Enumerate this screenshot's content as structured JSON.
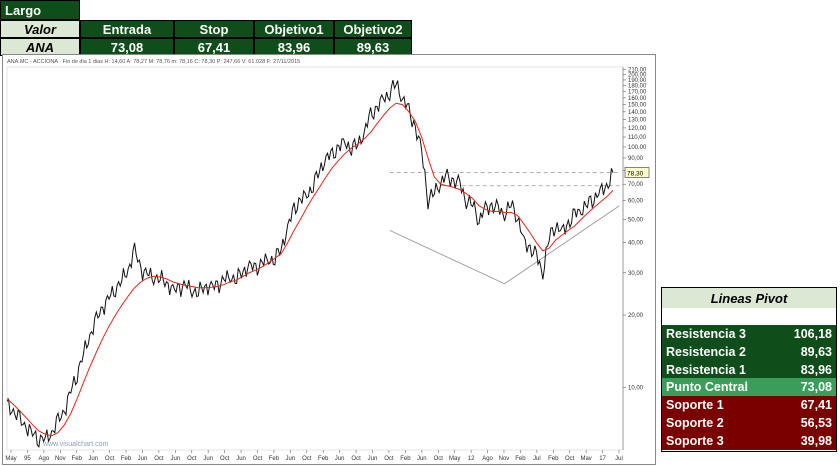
{
  "trade_table": {
    "title": "Largo",
    "row_label_header": "Valor",
    "row_label": "ANA",
    "columns": [
      "Entrada",
      "Stop",
      "Objetivo1",
      "Objetivo2"
    ],
    "values": [
      "73,08",
      "67,41",
      "83,96",
      "89,63"
    ]
  },
  "chart_header": "ANA.MC - ACCIONA  · Fin de dia 1 dias H: 14,60  A: 78,27  M: 78,76  m: 78,16  C: 78,30  P: 247,66  V: 61.028  F: 27/11/2015",
  "watermark": "www.visualchart.com",
  "chart_data": {
    "type": "line",
    "scale": "log",
    "ylim": [
      5.5,
      215
    ],
    "last_price_label": "78,30",
    "y_ticks": [
      {
        "v": 210,
        "label": "210,00"
      },
      {
        "v": 200,
        "label": "200,00"
      },
      {
        "v": 190,
        "label": "190,00"
      },
      {
        "v": 180,
        "label": "180,00"
      },
      {
        "v": 170,
        "label": "170,00"
      },
      {
        "v": 160,
        "label": "160,00"
      },
      {
        "v": 150,
        "label": "150,00"
      },
      {
        "v": 140,
        "label": "140,00"
      },
      {
        "v": 130,
        "label": "130,00"
      },
      {
        "v": 120,
        "label": "120,00"
      },
      {
        "v": 110,
        "label": "110,00"
      },
      {
        "v": 100,
        "label": "100,00"
      },
      {
        "v": 90,
        "label": "90,00"
      },
      {
        "v": 80,
        "label": "80,00"
      },
      {
        "v": 70,
        "label": "70,00"
      },
      {
        "v": 60,
        "label": "60,00"
      },
      {
        "v": 50,
        "label": "50,00"
      },
      {
        "v": 40,
        "label": "40,00"
      },
      {
        "v": 30,
        "label": "30,00"
      },
      {
        "v": 20,
        "label": "20,00"
      },
      {
        "v": 10,
        "label": "10,00"
      }
    ],
    "x_ticks": [
      "May",
      "95",
      "Ago",
      "Nov",
      "Feb",
      "Jun",
      "Oct",
      "Feb",
      "Jun",
      "Oct",
      "Jun",
      "Oct",
      "Jun",
      "Oct",
      "Jun",
      "Oct",
      "Feb",
      "Jun",
      "Oct",
      "Feb",
      "Jun",
      "Oct",
      "Jun",
      "Oct",
      "Feb",
      "Jun",
      "Oct",
      "May",
      "12",
      "Ago",
      "Nov",
      "Feb",
      "Jul",
      "Feb",
      "Oct",
      "Mav",
      "17",
      "Jul"
    ],
    "series": [
      {
        "role": "price",
        "values": [
          8.5,
          8.0,
          7.3,
          6.9,
          6.4,
          6.2,
          6.1,
          6.5,
          7.2,
          8.0,
          9.6,
          11.5,
          13.8,
          16.5,
          19.0,
          21.5,
          23.5,
          26.0,
          28.0,
          31.0,
          37.0,
          31.0,
          29.5,
          29.0,
          28.5,
          27.5,
          25.0,
          26.0,
          26.5,
          25.5,
          25.0,
          26.5,
          26.0,
          26.5,
          28.0,
          29.0,
          28.5,
          30.5,
          32.0,
          31.0,
          33.0,
          34.0,
          34.5,
          38.0,
          46.0,
          55.0,
          60.0,
          63.0,
          70.0,
          80.0,
          90.0,
          92.0,
          100.0,
          104.0,
          100.0,
          103.0,
          115.0,
          135.0,
          145.0,
          158.0,
          170.0,
          185.0,
          160.0,
          140.0,
          120.0,
          95.0,
          60.0,
          65.0,
          72.0,
          75.0,
          72.0,
          70.0,
          60.0,
          58.0,
          50.0,
          55.0,
          57.0,
          55.0,
          53.0,
          58.0,
          52.0,
          40.0,
          38.0,
          35.0,
          30.0,
          42.0,
          48.0,
          44.0,
          48.0,
          52.0,
          55.0,
          58.0,
          62.0,
          65.0,
          68.0,
          78.3
        ]
      },
      {
        "role": "moving_average",
        "values": [
          9.0,
          8.5,
          8.0,
          7.5,
          7.0,
          6.6,
          6.4,
          6.3,
          6.5,
          7.0,
          7.8,
          9.0,
          10.5,
          12.2,
          14.0,
          16.0,
          18.0,
          20.0,
          22.0,
          24.0,
          26.0,
          27.5,
          28.5,
          29.0,
          28.8,
          28.3,
          27.5,
          27.0,
          26.6,
          26.3,
          26.0,
          26.0,
          26.1,
          26.3,
          26.8,
          27.5,
          28.0,
          29.0,
          30.0,
          30.8,
          31.8,
          33.0,
          34.5,
          36.0,
          40.0,
          45.0,
          50.0,
          56.0,
          62.0,
          68.0,
          75.0,
          82.0,
          88.0,
          94.0,
          99.0,
          103.0,
          108.0,
          115.0,
          125.0,
          135.0,
          145.0,
          152.0,
          150.0,
          140.0,
          128.0,
          110.0,
          90.0,
          75.0,
          70.0,
          69.0,
          68.0,
          66.5,
          64.0,
          61.0,
          57.0,
          55.0,
          54.0,
          54.0,
          53.5,
          53.5,
          52.0,
          48.0,
          44.0,
          40.0,
          37.0,
          38.0,
          41.0,
          43.0,
          45.0,
          47.0,
          50.0,
          53.0,
          56.0,
          59.0,
          62.0,
          66.0
        ]
      }
    ],
    "annotations": [
      {
        "type": "hline",
        "y": 78.3,
        "x_from": 60,
        "x_to": 96,
        "style": "dashed"
      },
      {
        "type": "hline",
        "y": 69.0,
        "x_from": 68,
        "x_to": 96,
        "style": "dashed"
      },
      {
        "type": "trendline",
        "points": [
          [
            60,
            45
          ],
          [
            78,
            27
          ],
          [
            96,
            57
          ]
        ]
      }
    ]
  },
  "pivot_table": {
    "title": "Lineas Pivot",
    "rows": [
      {
        "label": "Resistencia 3",
        "value": "106,18",
        "kind": "resistance"
      },
      {
        "label": "Resistencia 2",
        "value": "89,63",
        "kind": "resistance"
      },
      {
        "label": "Resistencia 1",
        "value": "83,96",
        "kind": "resistance"
      },
      {
        "label": "Punto Central",
        "value": "73,08",
        "kind": "central"
      },
      {
        "label": "Soporte 1",
        "value": "67,41",
        "kind": "support"
      },
      {
        "label": "Soporte 2",
        "value": "56,53",
        "kind": "support"
      },
      {
        "label": "Soporte 3",
        "value": "39,98",
        "kind": "support"
      }
    ],
    "colors": {
      "resistance": "#0f4d1a",
      "central": "#3a9e5a",
      "support": "#7a0000"
    }
  }
}
